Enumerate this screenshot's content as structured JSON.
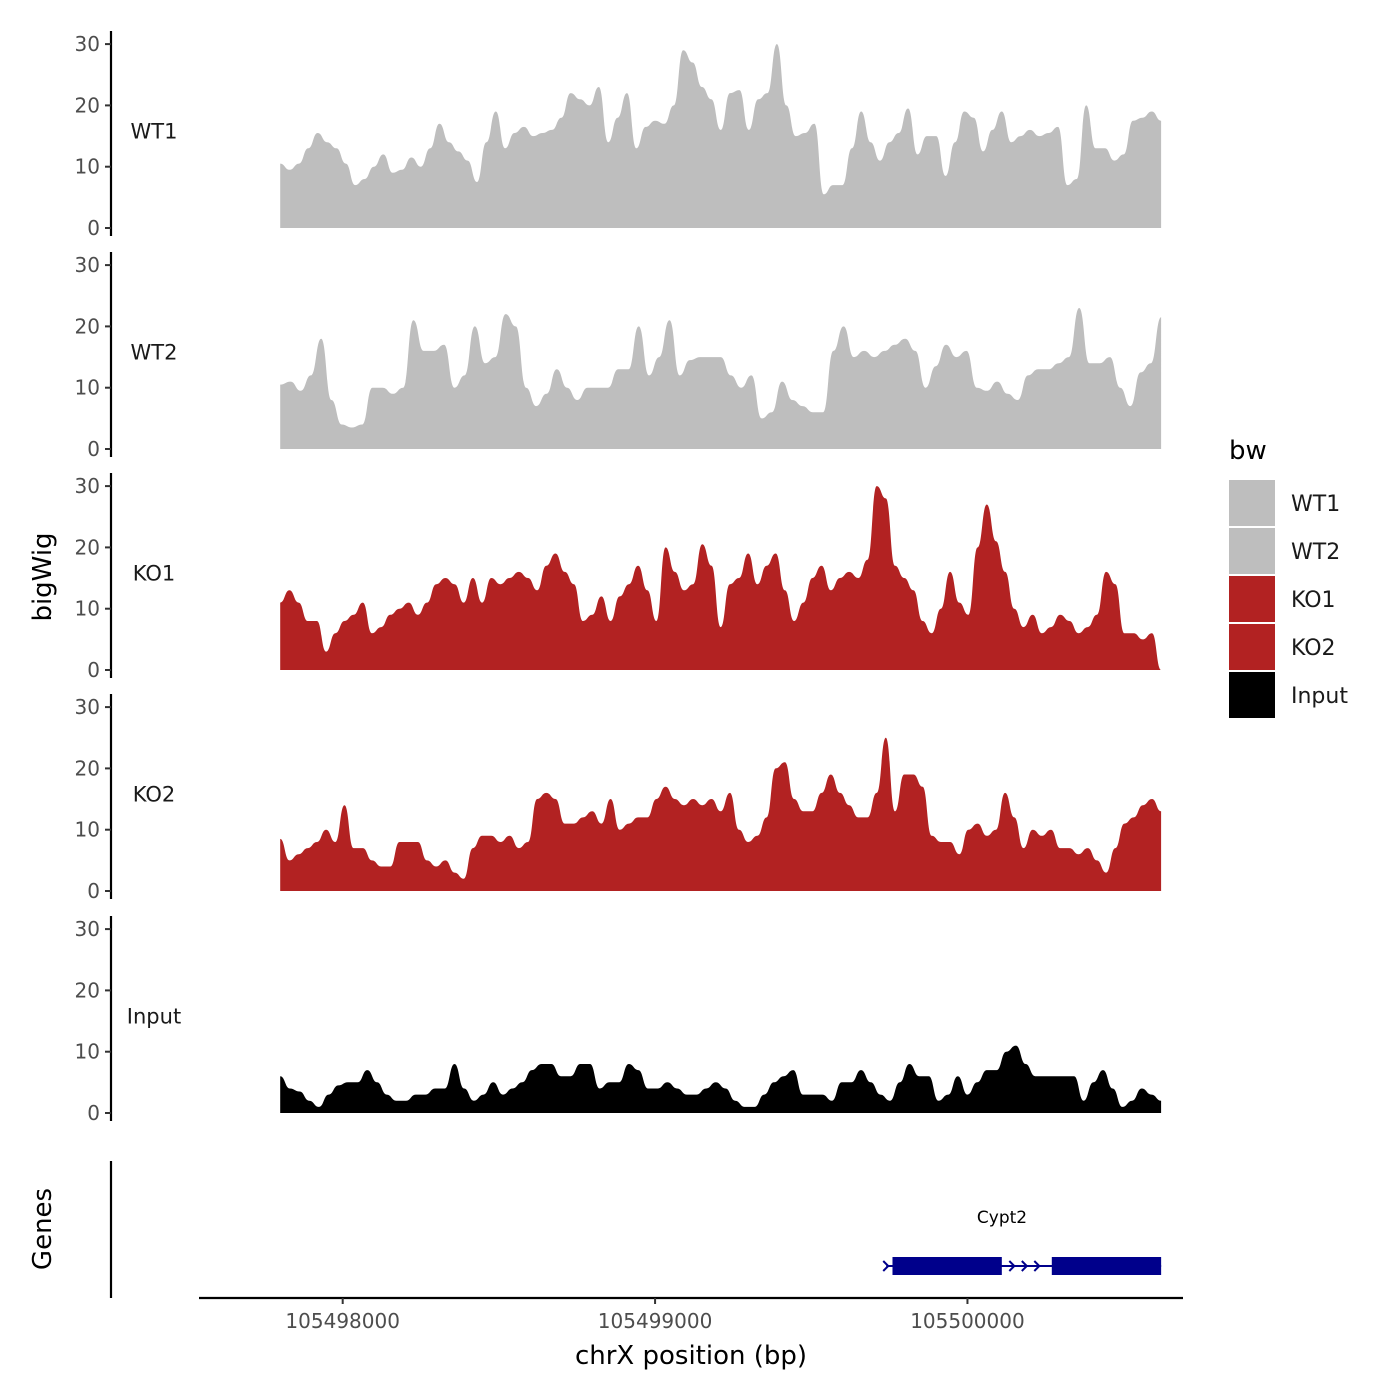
{
  "chart_data": {
    "type": "area",
    "title": "",
    "ylabel": "bigWig",
    "genes_label": "Genes",
    "xlabel": "chrX position (bp)",
    "x_range": [
      105497800,
      105500620
    ],
    "xlim": [
      105497540,
      105500690
    ],
    "x_ticks": [
      {
        "value": 105498000,
        "label": "105498000"
      },
      {
        "value": 105499000,
        "label": "105499000"
      },
      {
        "value": 105500000,
        "label": "105500000"
      }
    ],
    "ylim": [
      0,
      31
    ],
    "y_ticks": [
      {
        "value": 0,
        "label": "0"
      },
      {
        "value": 10,
        "label": "10"
      },
      {
        "value": 20,
        "label": "20"
      },
      {
        "value": 30,
        "label": "30"
      }
    ],
    "legend": {
      "title": "bw",
      "position": "right",
      "entries": [
        {
          "label": "WT1",
          "color": "#bebebe"
        },
        {
          "label": "WT2",
          "color": "#bebebe"
        },
        {
          "label": "KO1",
          "color": "#b22222"
        },
        {
          "label": "KO2",
          "color": "#b22222"
        },
        {
          "label": "Input",
          "color": "#000000"
        }
      ]
    },
    "tracks": [
      {
        "name": "WT1",
        "color": "#bebebe",
        "values": [
          10.5,
          9.5,
          10.5,
          13,
          15.5,
          14,
          13,
          10.5,
          7,
          8,
          10,
          12,
          9,
          9.5,
          11.5,
          10,
          13,
          17,
          14,
          12.5,
          11,
          7.5,
          14,
          19,
          13,
          15.5,
          16.5,
          15,
          15.5,
          16,
          18,
          22,
          21,
          20,
          23,
          14,
          18,
          22,
          13,
          16.5,
          17.5,
          17,
          20,
          29,
          27,
          23,
          21,
          16,
          22,
          22.5,
          16,
          21,
          22,
          30,
          20,
          15,
          15.5,
          17,
          5.5,
          7,
          7,
          13,
          19,
          14,
          11,
          14,
          15.5,
          19.5,
          12,
          15,
          15,
          8.5,
          14,
          19,
          18,
          12.5,
          16,
          19,
          14,
          15,
          16,
          15,
          15.5,
          16.5,
          7,
          8,
          20,
          13,
          13,
          11,
          12,
          17.5,
          18,
          19,
          17.5
        ]
      },
      {
        "name": "WT2",
        "color": "#bebebe",
        "values": [
          10.5,
          11,
          9.5,
          12,
          18,
          8,
          4,
          3.5,
          4,
          10,
          10,
          9,
          10,
          21,
          16,
          16,
          17,
          10,
          12,
          20,
          14,
          15,
          22,
          20,
          10,
          7,
          9,
          13,
          10,
          8,
          10,
          10,
          10,
          13,
          13,
          20,
          12,
          15,
          21,
          12,
          14.5,
          15,
          15,
          15,
          12,
          10,
          12,
          5,
          6,
          11,
          8,
          7,
          6,
          6,
          16,
          20,
          15,
          16,
          15,
          16,
          17,
          18,
          16,
          10,
          13.5,
          17,
          15,
          16,
          10,
          9.5,
          11,
          9,
          8,
          12,
          13,
          13,
          14,
          15,
          23,
          14,
          14,
          15,
          10,
          7,
          12.5,
          14,
          21.5
        ]
      },
      {
        "name": "KO1",
        "color": "#b22222",
        "values": [
          11,
          13,
          11,
          8,
          8,
          3,
          6,
          8,
          9,
          11,
          6,
          7,
          9,
          10,
          11,
          9,
          11,
          14,
          15,
          14,
          11,
          15,
          11,
          15,
          14,
          15,
          16,
          15,
          13,
          17,
          19,
          16,
          14,
          8,
          9,
          12,
          8,
          12,
          14,
          17,
          13,
          8,
          20,
          16,
          13,
          14,
          20.5,
          17,
          7,
          14,
          15,
          19,
          14,
          17,
          19,
          13,
          8,
          11,
          15,
          17,
          13,
          15,
          16,
          15,
          18,
          30,
          28,
          17,
          15,
          13,
          8,
          6,
          10,
          16,
          11,
          9,
          20,
          27,
          21,
          16,
          10,
          7,
          9,
          6,
          7,
          9,
          8,
          6,
          7,
          9,
          16,
          14,
          6,
          6,
          5,
          6,
          0
        ]
      },
      {
        "name": "KO2",
        "color": "#b22222",
        "values": [
          8.5,
          5,
          6,
          7,
          8,
          10,
          8,
          14,
          7,
          7,
          5,
          4,
          4,
          8,
          8,
          8,
          5,
          4,
          5,
          3,
          2,
          7,
          9,
          9,
          8,
          9,
          7,
          8,
          15,
          16,
          15,
          11,
          11,
          12,
          13,
          11,
          15,
          10,
          11,
          12,
          12,
          15,
          17,
          15,
          14,
          15,
          14,
          15,
          13,
          16,
          10,
          8,
          9,
          12,
          20,
          21,
          15,
          13,
          13,
          16,
          19,
          16,
          14,
          12,
          12,
          16,
          25,
          13,
          19,
          19,
          17,
          9,
          8,
          8,
          6,
          10,
          11,
          9,
          10,
          16,
          12,
          7,
          10,
          9,
          10,
          7,
          7,
          6,
          7,
          5,
          3,
          7,
          11,
          12,
          14,
          15,
          13
        ]
      },
      {
        "name": "Input",
        "color": "#000000",
        "values": [
          6,
          4,
          3.5,
          2,
          1,
          3,
          4.5,
          5,
          5,
          7,
          5,
          3,
          2,
          2,
          3,
          3,
          4,
          4,
          8,
          4,
          2,
          3,
          5,
          3,
          4,
          5,
          7,
          8,
          8,
          6,
          6,
          8,
          8,
          4,
          5,
          5,
          8,
          7,
          4,
          4,
          5,
          4,
          3,
          3,
          4,
          5,
          4,
          2,
          1,
          1,
          3,
          5,
          6,
          7,
          3,
          3,
          3,
          2,
          5,
          5,
          7,
          5,
          3,
          2,
          5,
          8,
          6,
          6,
          2,
          3,
          6,
          3,
          5,
          7,
          7,
          10,
          11,
          8,
          6,
          6,
          6,
          6,
          6,
          2,
          5,
          7,
          4,
          1,
          2,
          4,
          3,
          2
        ]
      }
    ],
    "gene": {
      "name": "Cypt2",
      "strand": "+",
      "start": 105499740,
      "end": 105500620,
      "exons": [
        [
          105499760,
          105500110
        ],
        [
          105500270,
          105500620
        ]
      ]
    }
  }
}
